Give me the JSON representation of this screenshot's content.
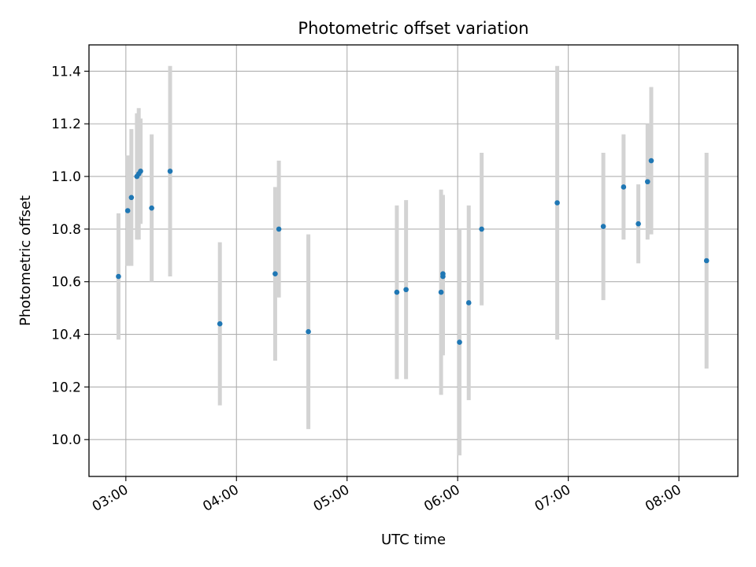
{
  "chart_data": {
    "type": "scatter",
    "title": "Photometric offset variation",
    "xlabel": "UTC time",
    "ylabel": "Photometric offset",
    "x_ticks": [
      "03:00",
      "04:00",
      "05:00",
      "06:00",
      "07:00",
      "08:00"
    ],
    "y_ticks": [
      "10.0",
      "10.2",
      "10.4",
      "10.6",
      "10.8",
      "11.0",
      "11.2",
      "11.4"
    ],
    "xlim": [
      "02:40",
      "08:32"
    ],
    "ylim": [
      9.86,
      11.5
    ],
    "grid": true,
    "marker_color": "#1f77b4",
    "errorbar_color": "#d3d3d3",
    "points": [
      {
        "x": "02:56",
        "y": 10.62,
        "err": 0.24
      },
      {
        "x": "03:01",
        "y": 10.87,
        "err": 0.21
      },
      {
        "x": "03:03",
        "y": 10.92,
        "err": 0.26
      },
      {
        "x": "03:06",
        "y": 11.0,
        "err": 0.24
      },
      {
        "x": "03:07",
        "y": 11.01,
        "err": 0.25
      },
      {
        "x": "03:08",
        "y": 11.02,
        "err": 0.2
      },
      {
        "x": "03:14",
        "y": 10.88,
        "err": 0.28
      },
      {
        "x": "03:24",
        "y": 11.02,
        "err": 0.4
      },
      {
        "x": "03:51",
        "y": 10.44,
        "err": 0.31
      },
      {
        "x": "04:21",
        "y": 10.63,
        "err": 0.33
      },
      {
        "x": "04:23",
        "y": 10.8,
        "err": 0.26
      },
      {
        "x": "04:39",
        "y": 10.41,
        "err": 0.37
      },
      {
        "x": "05:27",
        "y": 10.56,
        "err": 0.33
      },
      {
        "x": "05:32",
        "y": 10.57,
        "err": 0.34
      },
      {
        "x": "05:51",
        "y": 10.56,
        "err": 0.39
      },
      {
        "x": "05:52",
        "y": 10.62,
        "err": 0.3
      },
      {
        "x": "05:52",
        "y": 10.63,
        "err": 0.3
      },
      {
        "x": "06:01",
        "y": 10.37,
        "err": 0.43
      },
      {
        "x": "06:06",
        "y": 10.52,
        "err": 0.37
      },
      {
        "x": "06:13",
        "y": 10.8,
        "err": 0.29
      },
      {
        "x": "06:54",
        "y": 10.9,
        "err": 0.52
      },
      {
        "x": "07:19",
        "y": 10.81,
        "err": 0.28
      },
      {
        "x": "07:30",
        "y": 10.96,
        "err": 0.2
      },
      {
        "x": "07:38",
        "y": 10.82,
        "err": 0.15
      },
      {
        "x": "07:43",
        "y": 10.98,
        "err": 0.22
      },
      {
        "x": "07:45",
        "y": 11.06,
        "err": 0.28
      },
      {
        "x": "08:15",
        "y": 10.68,
        "err": 0.41
      }
    ]
  }
}
